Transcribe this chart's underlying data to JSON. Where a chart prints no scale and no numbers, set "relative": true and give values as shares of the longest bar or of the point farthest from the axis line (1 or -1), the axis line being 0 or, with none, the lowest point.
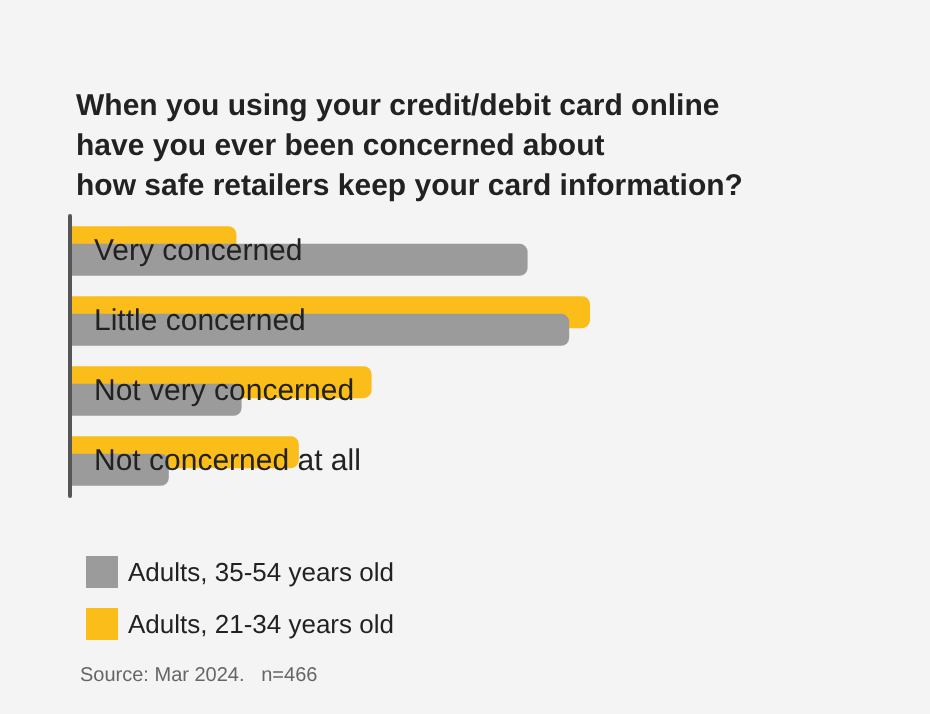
{
  "chart_data": {
    "type": "bar",
    "orientation": "horizontal",
    "relative": true,
    "title": "When you using your credit/debit card online\nhave you ever been concerned about\nhow safe retailers keep your card information?",
    "categories": [
      "Very concerned",
      "Little concerned",
      "Not very concerned",
      "Not concerned at all"
    ],
    "series": [
      {
        "name": "Adults, 35-54 years old",
        "color": "#9b9b9b",
        "values": [
          0.88,
          0.96,
          0.33,
          0.19
        ]
      },
      {
        "name": "Adults, 21-34 years old",
        "color": "#fbbd1a",
        "values": [
          0.32,
          1,
          0.58,
          0.44
        ]
      }
    ],
    "legend": "bottom left",
    "annotations": [
      "Source: Mar 2024.   n=466"
    ]
  }
}
